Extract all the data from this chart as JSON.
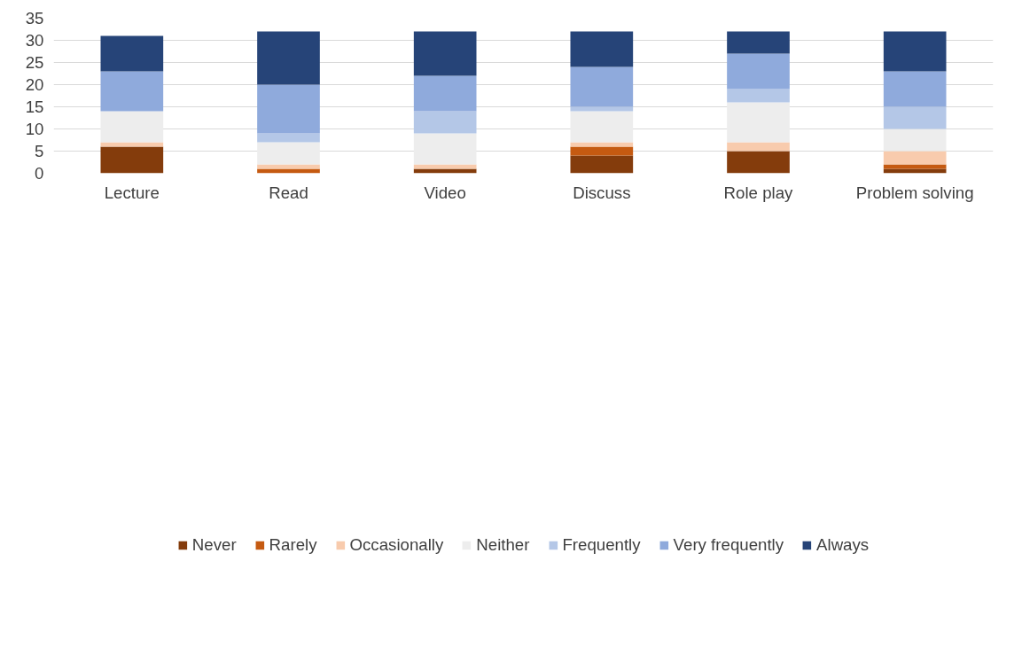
{
  "chart_data": {
    "type": "bar",
    "stacked": true,
    "categories": [
      "Lecture",
      "Read",
      "Video",
      "Discuss",
      "Role play",
      "Problem solving"
    ],
    "series": [
      {
        "name": "Never",
        "color": "#843c0c",
        "values": [
          6,
          0,
          1,
          4,
          5,
          1
        ]
      },
      {
        "name": "Rarely",
        "color": "#c55a11",
        "values": [
          0,
          1,
          0,
          2,
          0,
          1
        ]
      },
      {
        "name": "Occasionally",
        "color": "#f8cbad",
        "values": [
          1,
          1,
          1,
          1,
          2,
          3
        ]
      },
      {
        "name": "Neither",
        "color": "#ededed",
        "values": [
          7,
          5,
          7,
          7,
          9,
          5
        ]
      },
      {
        "name": "Frequently",
        "color": "#b4c7e7",
        "values": [
          0,
          2,
          5,
          1,
          3,
          5
        ]
      },
      {
        "name": "Very frequently",
        "color": "#8faadc",
        "values": [
          9,
          11,
          8,
          9,
          8,
          8
        ]
      },
      {
        "name": "Always",
        "color": "#264478",
        "values": [
          8,
          12,
          10,
          8,
          5,
          9
        ]
      }
    ],
    "ylim": [
      0,
      35
    ],
    "yticks": [
      0,
      5,
      10,
      15,
      20,
      25,
      30,
      35
    ],
    "grid": "y",
    "legend": "bottom"
  }
}
